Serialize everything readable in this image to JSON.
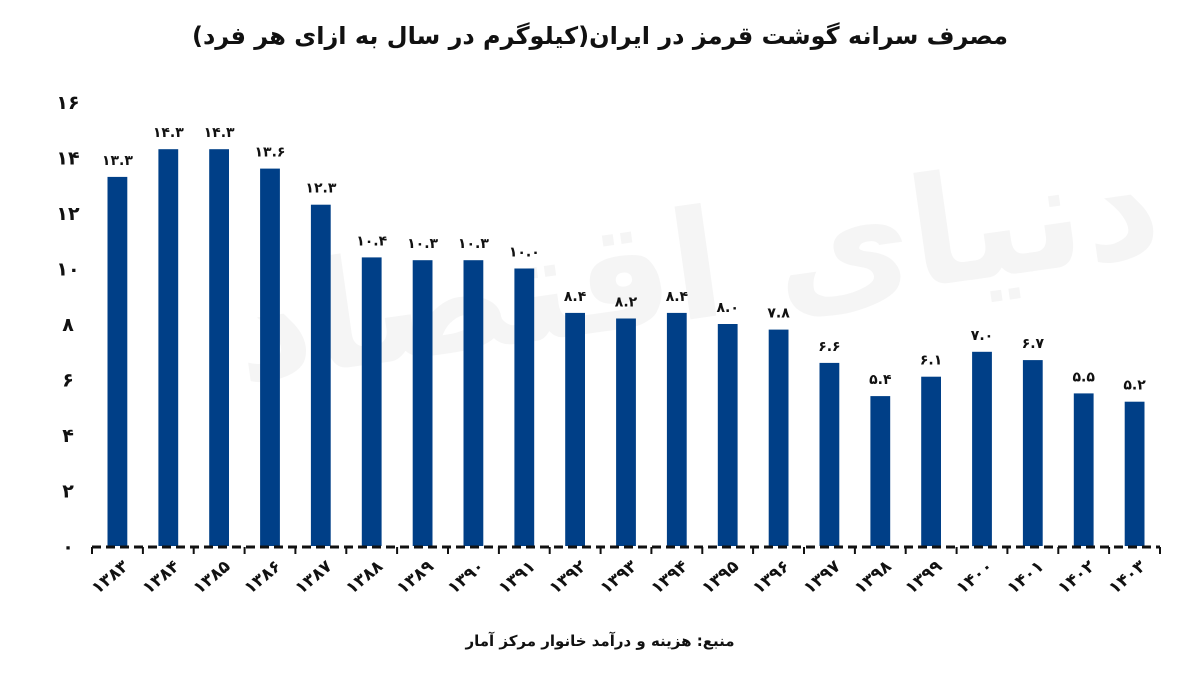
{
  "title": "مصرف سرانه گوشت قرمز در ایران(کیلوگرم در سال به ازای هر فرد)",
  "source": "منبع: هزینه و درآمد خانوار مرکز آمار",
  "watermark": "دنیای اقتصاد",
  "colors": {
    "bar": "#003f87",
    "axis": "#111111",
    "text": "#111111"
  },
  "chart_data": {
    "type": "bar",
    "title": "مصرف سرانه گوشت قرمز در ایران(کیلوگرم در سال به ازای هر فرد)",
    "xlabel": "",
    "ylabel": "",
    "ylim": [
      0,
      16
    ],
    "grid": false,
    "categories": [
      "۱۳۸۳",
      "۱۳۸۴",
      "۱۳۸۵",
      "۱۳۸۶",
      "۱۳۸۷",
      "۱۳۸۸",
      "۱۳۸۹",
      "۱۳۹۰",
      "۱۳۹۱",
      "۱۳۹۲",
      "۱۳۹۳",
      "۱۳۹۴",
      "۱۳۹۵",
      "۱۳۹۶",
      "۱۳۹۷",
      "۱۳۹۸",
      "۱۳۹۹",
      "۱۴۰۰",
      "۱۴۰۱",
      "۱۴۰۲",
      "۱۴۰۳"
    ],
    "values": [
      13.3,
      14.3,
      14.3,
      13.6,
      12.3,
      10.4,
      10.3,
      10.3,
      10.0,
      8.4,
      8.2,
      8.4,
      8.0,
      7.8,
      6.6,
      5.4,
      6.1,
      7.0,
      6.7,
      5.5,
      5.2
    ],
    "value_labels": [
      "۱۳.۳",
      "۱۴.۳",
      "۱۴.۳",
      "۱۳.۶",
      "۱۲.۳",
      "۱۰.۴",
      "۱۰.۳",
      "۱۰.۳",
      "۱۰.۰",
      "۸.۴",
      "۸.۲",
      "۸.۴",
      "۸.۰",
      "۷.۸",
      "۶.۶",
      "۵.۴",
      "۶.۱",
      "۷.۰",
      "۶.۷",
      "۵.۵",
      "۵.۲"
    ],
    "y_ticks": [
      0,
      2,
      4,
      6,
      8,
      10,
      12,
      14,
      16
    ],
    "y_tick_labels": [
      "۰",
      "۲",
      "۴",
      "۶",
      "۸",
      "۱۰",
      "۱۲",
      "۱۴",
      "۱۶"
    ]
  }
}
